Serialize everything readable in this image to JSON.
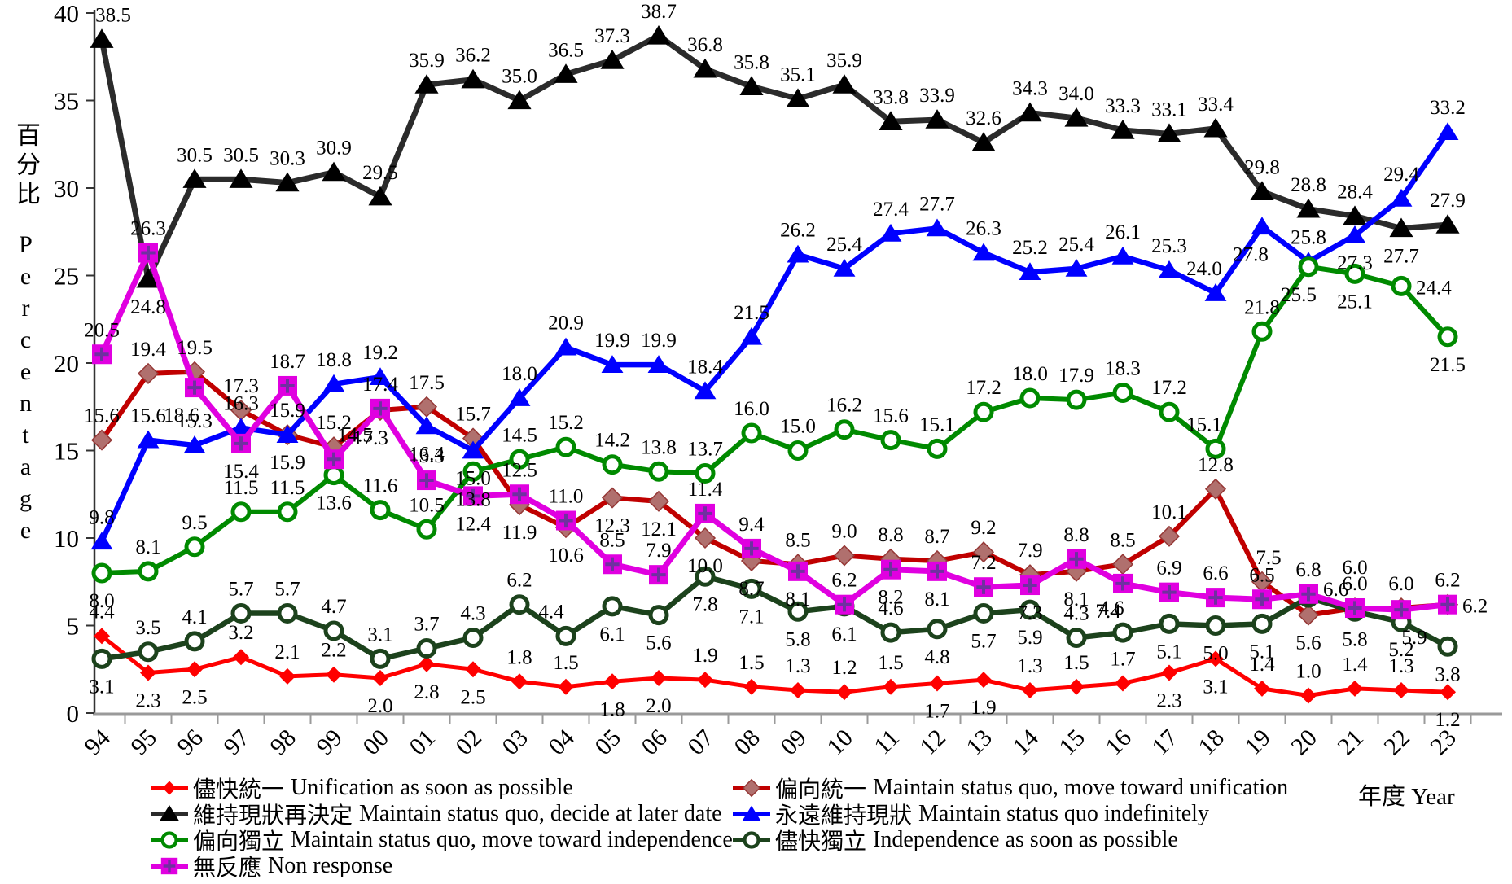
{
  "chart_data": {
    "type": "line",
    "title": "",
    "x_axis": {
      "title_zh": "年度",
      "title_en": "Year",
      "categories": [
        "94",
        "95",
        "96",
        "97",
        "98",
        "99",
        "00",
        "01",
        "02",
        "03",
        "04",
        "05",
        "06",
        "07",
        "08",
        "09",
        "10",
        "11",
        "12",
        "13",
        "14",
        "15",
        "16",
        "17",
        "18",
        "19",
        "20",
        "21",
        "22",
        "23"
      ]
    },
    "y_axis": {
      "title_zh": "百分比",
      "title_en": "Percentage",
      "min": 0,
      "max": 40,
      "tick_step": 5,
      "ticks": [
        0,
        5,
        10,
        15,
        20,
        25,
        30,
        35,
        40
      ]
    },
    "grid": "off",
    "legend_position": "bottom-two-columns",
    "series": [
      {
        "key": "unification-asap",
        "name_zh": "儘快統一",
        "name_en": "Unification as soon as possible",
        "color": "#FF0000",
        "marker": "diamond",
        "marker_fill": "#FF0000",
        "line_width": 5,
        "marker_size": 10,
        "values": [
          4.4,
          2.3,
          2.5,
          3.2,
          2.1,
          2.2,
          2.0,
          2.8,
          2.5,
          1.8,
          1.5,
          1.8,
          2.0,
          1.9,
          1.5,
          1.3,
          1.2,
          1.5,
          1.7,
          1.9,
          1.3,
          1.5,
          1.7,
          2.3,
          3.1,
          1.4,
          1.0,
          1.4,
          1.3,
          1.2
        ],
        "label_pos": "abbaaabbbaabbaaaaabbaaabbaaaab"
      },
      {
        "key": "lean-unification",
        "name_zh": "偏向統一",
        "name_en": "Maintain status quo, move toward unification",
        "color": "#C00000",
        "marker": "diamond",
        "marker_fill": "#B0706E",
        "marker_stroke": "#953735",
        "line_width": 6,
        "marker_size": 12,
        "values": [
          15.6,
          19.4,
          19.5,
          17.3,
          15.9,
          15.2,
          17.3,
          17.5,
          15.7,
          11.9,
          10.6,
          12.3,
          12.1,
          10.0,
          8.7,
          8.5,
          9.0,
          8.8,
          8.7,
          9.2,
          7.9,
          8.1,
          8.5,
          10.1,
          12.8,
          7.5,
          5.6,
          6.0,
          6.0,
          6.2
        ],
        "label_pos": "aaaaaabaabbbbbbaaaaaabaaaabaaa"
      },
      {
        "key": "status-quo-decide-later",
        "name_zh": "維持現狀再決定",
        "name_en": "Maintain status quo, decide at later date",
        "color": "#2B2B2B",
        "marker": "triangle",
        "marker_fill": "#000000",
        "line_width": 7,
        "marker_size": 13,
        "values": [
          38.5,
          24.8,
          30.5,
          30.5,
          30.3,
          30.9,
          29.5,
          35.9,
          36.2,
          35.0,
          36.5,
          37.3,
          38.7,
          36.8,
          35.8,
          35.1,
          35.9,
          33.8,
          33.9,
          32.6,
          34.3,
          34.0,
          33.3,
          33.1,
          33.4,
          29.8,
          28.8,
          28.4,
          27.7,
          27.9
        ],
        "label_pos": "abaaaaaaaaaaaaaaaaaaaaaaaaaaba"
      },
      {
        "key": "status-quo-indefinitely",
        "name_zh": "永遠維持現狀",
        "name_en": "Maintain status quo indefinitely",
        "color": "#0000FF",
        "marker": "triangle",
        "marker_fill": "#0000FF",
        "line_width": 6.5,
        "marker_size": 12,
        "values": [
          9.8,
          15.6,
          15.3,
          16.3,
          15.9,
          18.8,
          19.2,
          16.4,
          15.0,
          18.0,
          20.9,
          19.9,
          19.9,
          18.4,
          21.5,
          26.2,
          25.4,
          27.4,
          27.7,
          26.3,
          25.2,
          25.4,
          26.1,
          25.3,
          24.0,
          27.8,
          25.8,
          27.3,
          29.4,
          33.2
        ],
        "label_pos": "aaaabaabbaaaaaaaaaaaaaaaababaa"
      },
      {
        "key": "lean-independence",
        "name_zh": "偏向獨立",
        "name_en": "Maintain status quo, move toward independence",
        "color": "#008A00",
        "marker": "circle",
        "line_width": 6,
        "marker_size": 10,
        "values": [
          8.0,
          8.1,
          9.5,
          11.5,
          11.5,
          13.6,
          11.6,
          10.5,
          13.8,
          14.5,
          15.2,
          14.2,
          13.8,
          13.7,
          16.0,
          15.0,
          16.2,
          15.6,
          15.1,
          17.2,
          18.0,
          17.9,
          18.3,
          17.2,
          15.1,
          21.8,
          25.5,
          25.1,
          24.4,
          21.5
        ],
        "label_pos": "baaaabaabaaaaaaaaaaaaaaaaabbrb"
      },
      {
        "key": "independence-asap",
        "name_zh": "儘快獨立",
        "name_en": "Independence as soon as possible",
        "color": "#1C421C",
        "marker": "circle",
        "line_width": 6.5,
        "marker_size": 10,
        "values": [
          3.1,
          3.5,
          4.1,
          5.7,
          5.7,
          4.7,
          3.1,
          3.7,
          4.3,
          6.2,
          4.4,
          6.1,
          5.6,
          7.8,
          7.1,
          5.8,
          6.1,
          4.6,
          4.8,
          5.7,
          5.9,
          4.3,
          4.6,
          5.1,
          5.0,
          5.1,
          6.6,
          5.8,
          5.2,
          3.8
        ],
        "label_pos": "baaaaaaaaaabbbbbbabbbaabbbrbbb"
      },
      {
        "key": "non-response",
        "name_zh": "無反應",
        "name_en": "Non response",
        "color": "#E000E0",
        "marker": "square-plus",
        "marker_fill": "#E000E0",
        "inner_color": "#7030A0",
        "line_width": 7,
        "marker_size": 12,
        "values": [
          20.5,
          26.3,
          18.6,
          15.4,
          18.7,
          14.5,
          17.4,
          13.3,
          12.4,
          12.5,
          11.0,
          8.5,
          7.9,
          11.4,
          9.4,
          8.1,
          6.2,
          8.2,
          8.1,
          7.2,
          7.3,
          8.8,
          7.4,
          6.9,
          6.6,
          6.5,
          6.8,
          6.0,
          5.9,
          6.2
        ],
        "label_pos": "aabbaaaabaaaaaababbababaaaaabr"
      }
    ],
    "label_overrides": {
      "2-0": [
        14,
        0
      ],
      "1-6": [
        -12,
        0
      ],
      "1-25": [
        8,
        0
      ],
      "1-27": [
        0,
        -20
      ],
      "3-24": [
        -14,
        0
      ],
      "3-25": [
        -14,
        0
      ],
      "4-24": [
        -14,
        0
      ],
      "4-26": [
        -12,
        0
      ],
      "6-2": [
        -16,
        0
      ],
      "6-5": [
        26,
        0
      ],
      "6-22": [
        -18,
        0
      ],
      "6-28": [
        16,
        0
      ],
      "5-10": [
        -18,
        0
      ],
      "5-22": [
        -14,
        0
      ],
      "5-26": [
        0,
        -12
      ]
    },
    "legend": {
      "left": [
        0,
        2,
        4,
        6
      ],
      "right": [
        1,
        3,
        5
      ]
    }
  }
}
